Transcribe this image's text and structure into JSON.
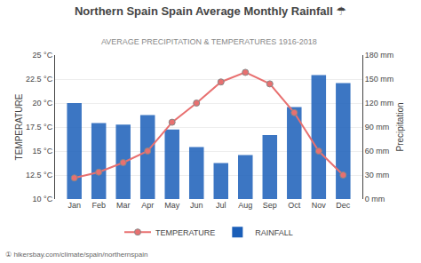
{
  "chart_data": {
    "type": "bar",
    "title": "Northern Spain Spain Average Monthly Rainfall ☂",
    "subtitle": "AVERAGE PRECIPITATION & TEMPERATURES 1916-2018",
    "categories": [
      "Jan",
      "Feb",
      "Mar",
      "Apr",
      "May",
      "Jun",
      "Jul",
      "Aug",
      "Sep",
      "Oct",
      "Nov",
      "Dec"
    ],
    "series": [
      {
        "name": "TEMPERATURE",
        "type": "line",
        "color": "#e87070",
        "marker": "circle",
        "values": [
          12.2,
          12.8,
          13.8,
          15.0,
          18.0,
          20.0,
          22.2,
          23.2,
          22.0,
          19.0,
          15.0,
          12.5
        ]
      },
      {
        "name": "RAINFALL",
        "type": "bar",
        "color": "#1a5eb8",
        "axis": "y2",
        "values": [
          120,
          95,
          93,
          105,
          87,
          65,
          45,
          55,
          80,
          115,
          155,
          145
        ]
      }
    ],
    "ylabel": "TEMPERATURE",
    "y2label": "Precipitation",
    "ylim": [
      10,
      25
    ],
    "yticks": [
      {
        "value": 10,
        "label": "10 °C"
      },
      {
        "value": 12.5,
        "label": "12.5 °C"
      },
      {
        "value": 15,
        "label": "15 °C"
      },
      {
        "value": 17.5,
        "label": "17.5 °C"
      },
      {
        "value": 20,
        "label": "20 °C"
      },
      {
        "value": 22.5,
        "label": "22.5 °C"
      },
      {
        "value": 25,
        "label": "25 °C"
      }
    ],
    "y2lim": [
      0,
      180
    ],
    "y2ticks": [
      {
        "value": 0,
        "label": "0 mm"
      },
      {
        "value": 30,
        "label": "30 mm"
      },
      {
        "value": 60,
        "label": "60 mm"
      },
      {
        "value": 90,
        "label": "90 mm"
      },
      {
        "value": 120,
        "label": "120 mm"
      },
      {
        "value": 150,
        "label": "150 mm"
      },
      {
        "value": 180,
        "label": "180 mm"
      }
    ],
    "grid": true,
    "legend": "bottom",
    "annotations": [
      "① hikersbay.com/climate/spain/northernspain"
    ]
  }
}
